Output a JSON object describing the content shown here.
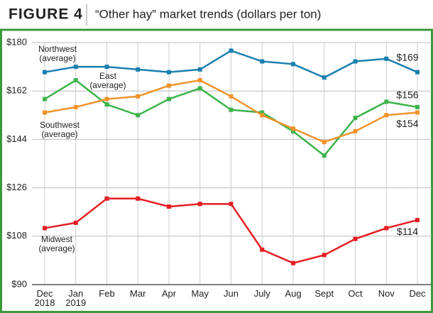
{
  "chart_data": {
    "type": "line",
    "figure_label": "FIGURE 4",
    "title": "“Other hay” market trends (dollars per ton)",
    "categories": [
      "Dec 2018",
      "Jan 2019",
      "Feb",
      "Mar",
      "Apr",
      "May",
      "Jun",
      "July",
      "Aug",
      "Sept",
      "Oct",
      "Nov",
      "Dec"
    ],
    "ylim": [
      90,
      180
    ],
    "yticks": [
      {
        "value": 90,
        "label": "$90"
      },
      {
        "value": 108,
        "label": "$108"
      },
      {
        "value": 126,
        "label": "$126"
      },
      {
        "value": 144,
        "label": "$144"
      },
      {
        "value": 162,
        "label": "$162"
      },
      {
        "value": 180,
        "label": "$180"
      }
    ],
    "grid": true,
    "series": [
      {
        "name": "Northwest (average)",
        "color": "#1a7fb0",
        "values": [
          169,
          171,
          171,
          170,
          169,
          170,
          177,
          173,
          172,
          167,
          173,
          174,
          169
        ],
        "value_labels": [
          null,
          null,
          null,
          null,
          null,
          null,
          null,
          null,
          null,
          null,
          null,
          null,
          "$169"
        ]
      },
      {
        "name": "East (average)",
        "color": "#3cb34a",
        "values": [
          159,
          166,
          157,
          153,
          159,
          163,
          155,
          154,
          147,
          138,
          152,
          158,
          156
        ],
        "value_labels": [
          null,
          null,
          null,
          null,
          null,
          null,
          null,
          null,
          null,
          null,
          null,
          null,
          "$156"
        ]
      },
      {
        "name": "Southwest (average)",
        "color": "#f0932b",
        "values": [
          154,
          156,
          159,
          160,
          164,
          166,
          160,
          153,
          148,
          143,
          147,
          153,
          154
        ],
        "value_labels": [
          null,
          null,
          null,
          null,
          null,
          null,
          null,
          null,
          null,
          null,
          null,
          null,
          "$154"
        ]
      },
      {
        "name": "Midwest (average)",
        "color": "#e31e24",
        "values": [
          111,
          113,
          122,
          122,
          119,
          120,
          120,
          103,
          98,
          101,
          107,
          111,
          114
        ],
        "value_labels": [
          null,
          null,
          null,
          null,
          null,
          null,
          null,
          null,
          null,
          null,
          null,
          null,
          "$114"
        ]
      }
    ]
  }
}
